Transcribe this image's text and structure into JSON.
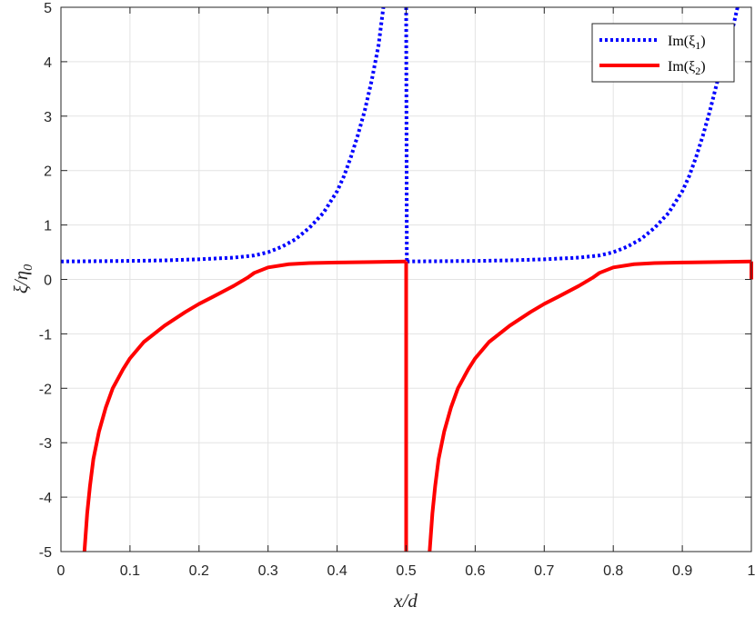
{
  "chart_data": {
    "type": "line",
    "title": "",
    "xlabel": "x/d",
    "ylabel": "ξ/η",
    "ylabel_sub": "0",
    "xlim": [
      0,
      1
    ],
    "ylim": [
      -5,
      5
    ],
    "x_ticks": [
      0,
      0.1,
      0.2,
      0.3,
      0.4,
      0.5,
      0.6,
      0.7,
      0.8,
      0.9,
      1
    ],
    "x_tick_labels": [
      "0",
      "0.1",
      "0.2",
      "0.3",
      "0.4",
      "0.5",
      "0.6",
      "0.7",
      "0.8",
      "0.9",
      "1"
    ],
    "y_ticks": [
      -5,
      -4,
      -3,
      -2,
      -1,
      0,
      1,
      2,
      3,
      4,
      5
    ],
    "y_tick_labels": [
      "-5",
      "-4",
      "-3",
      "-2",
      "-1",
      "0",
      "1",
      "2",
      "3",
      "4",
      "5"
    ],
    "grid": true,
    "legend_position": "top-right",
    "series": [
      {
        "name": "Im(ξ",
        "name_sub": "1",
        "name_close": ")",
        "color": "#0000ff",
        "style": "dotted",
        "segments": [
          [
            [
              0,
              0.33
            ],
            [
              0.05,
              0.335
            ],
            [
              0.1,
              0.34
            ],
            [
              0.15,
              0.35
            ],
            [
              0.2,
              0.37
            ],
            [
              0.25,
              0.4
            ],
            [
              0.28,
              0.44
            ],
            [
              0.3,
              0.5
            ],
            [
              0.32,
              0.6
            ],
            [
              0.34,
              0.74
            ],
            [
              0.36,
              0.95
            ],
            [
              0.38,
              1.22
            ],
            [
              0.4,
              1.62
            ],
            [
              0.41,
              1.9
            ],
            [
              0.42,
              2.25
            ],
            [
              0.43,
              2.65
            ],
            [
              0.44,
              3.1
            ],
            [
              0.45,
              3.65
            ],
            [
              0.46,
              4.3
            ],
            [
              0.467,
              5.0
            ]
          ],
          [
            [
              0.5,
              5.0
            ],
            [
              0.501,
              0.33
            ]
          ],
          [
            [
              0.501,
              0.33
            ],
            [
              0.55,
              0.335
            ],
            [
              0.6,
              0.34
            ],
            [
              0.65,
              0.35
            ],
            [
              0.7,
              0.37
            ],
            [
              0.75,
              0.4
            ],
            [
              0.78,
              0.44
            ],
            [
              0.8,
              0.5
            ],
            [
              0.82,
              0.6
            ],
            [
              0.84,
              0.74
            ],
            [
              0.86,
              0.95
            ],
            [
              0.88,
              1.22
            ],
            [
              0.9,
              1.62
            ],
            [
              0.91,
              1.9
            ],
            [
              0.92,
              2.25
            ],
            [
              0.93,
              2.65
            ],
            [
              0.94,
              3.1
            ],
            [
              0.95,
              3.6
            ],
            [
              0.96,
              4.0
            ],
            [
              0.97,
              4.45
            ],
            [
              0.98,
              5.0
            ]
          ]
        ]
      },
      {
        "name": "Im(ξ",
        "name_sub": "2",
        "name_close": ")",
        "color": "#ff0000",
        "style": "solid",
        "segments": [
          [
            [
              0.034,
              -5.0
            ],
            [
              0.038,
              -4.3
            ],
            [
              0.042,
              -3.8
            ],
            [
              0.047,
              -3.3
            ],
            [
              0.055,
              -2.8
            ],
            [
              0.065,
              -2.35
            ],
            [
              0.075,
              -2.0
            ],
            [
              0.09,
              -1.65
            ],
            [
              0.1,
              -1.45
            ],
            [
              0.12,
              -1.15
            ],
            [
              0.15,
              -0.85
            ],
            [
              0.18,
              -0.6
            ],
            [
              0.2,
              -0.45
            ],
            [
              0.22,
              -0.32
            ],
            [
              0.25,
              -0.12
            ],
            [
              0.27,
              0.03
            ],
            [
              0.28,
              0.12
            ],
            [
              0.3,
              0.22
            ],
            [
              0.33,
              0.28
            ],
            [
              0.36,
              0.3
            ],
            [
              0.4,
              0.31
            ],
            [
              0.45,
              0.32
            ],
            [
              0.5,
              0.33
            ]
          ],
          [
            [
              0.5,
              0.33
            ],
            [
              0.5,
              -5.0
            ]
          ],
          [
            [
              0.534,
              -5.0
            ],
            [
              0.538,
              -4.3
            ],
            [
              0.542,
              -3.8
            ],
            [
              0.547,
              -3.3
            ],
            [
              0.555,
              -2.8
            ],
            [
              0.565,
              -2.35
            ],
            [
              0.575,
              -2.0
            ],
            [
              0.59,
              -1.65
            ],
            [
              0.6,
              -1.45
            ],
            [
              0.62,
              -1.15
            ],
            [
              0.65,
              -0.85
            ],
            [
              0.68,
              -0.6
            ],
            [
              0.7,
              -0.45
            ],
            [
              0.72,
              -0.32
            ],
            [
              0.75,
              -0.12
            ],
            [
              0.77,
              0.03
            ],
            [
              0.78,
              0.12
            ],
            [
              0.8,
              0.22
            ],
            [
              0.83,
              0.28
            ],
            [
              0.86,
              0.3
            ],
            [
              0.9,
              0.31
            ],
            [
              0.95,
              0.32
            ],
            [
              1.0,
              0.33
            ]
          ],
          [
            [
              1.0,
              0.33
            ],
            [
              1.0,
              0.0
            ]
          ]
        ]
      }
    ]
  }
}
